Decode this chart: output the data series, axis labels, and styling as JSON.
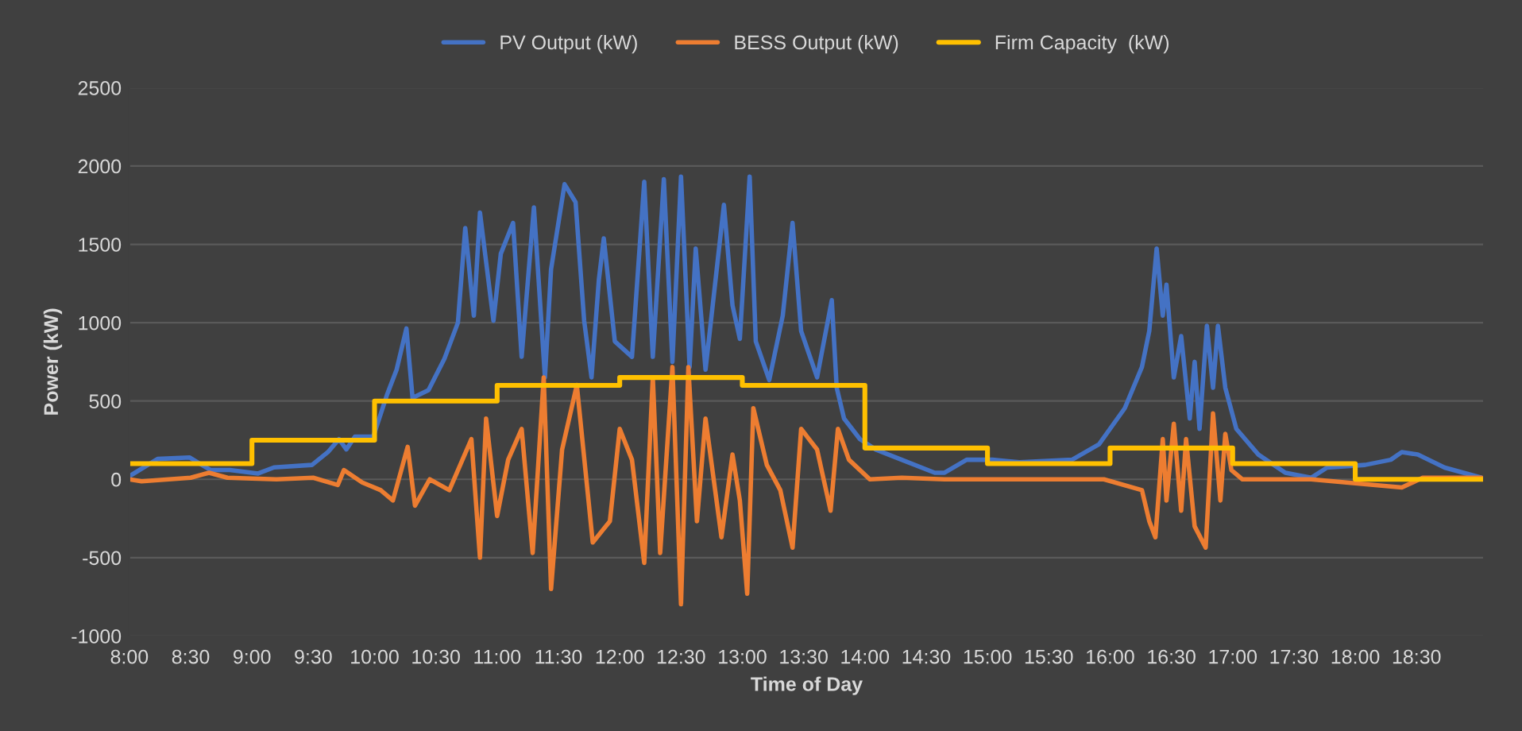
{
  "chart_data": {
    "type": "line",
    "xlabel": "Time of Day",
    "ylabel": "Power (kW)",
    "xlim": [
      8,
      19.05
    ],
    "ylim": [
      -1000,
      2500
    ],
    "xticks": [
      {
        "value": 8,
        "label": "8:00"
      },
      {
        "value": 8.5,
        "label": "8:30"
      },
      {
        "value": 9,
        "label": "9:00"
      },
      {
        "value": 9.5,
        "label": "9:30"
      },
      {
        "value": 10,
        "label": "10:00"
      },
      {
        "value": 10.5,
        "label": "10:30"
      },
      {
        "value": 11,
        "label": "11:00"
      },
      {
        "value": 11.5,
        "label": "11:30"
      },
      {
        "value": 12,
        "label": "12:00"
      },
      {
        "value": 12.5,
        "label": "12:30"
      },
      {
        "value": 13,
        "label": "13:00"
      },
      {
        "value": 13.5,
        "label": "13:30"
      },
      {
        "value": 14,
        "label": "14:00"
      },
      {
        "value": 14.5,
        "label": "14:30"
      },
      {
        "value": 15,
        "label": "15:00"
      },
      {
        "value": 15.5,
        "label": "15:30"
      },
      {
        "value": 16,
        "label": "16:00"
      },
      {
        "value": 16.5,
        "label": "16:30"
      },
      {
        "value": 17,
        "label": "17:00"
      },
      {
        "value": 17.5,
        "label": "17:30"
      },
      {
        "value": 18,
        "label": "18:00"
      },
      {
        "value": 18.5,
        "label": "18:30"
      }
    ],
    "yticks": [
      -1000,
      -500,
      0,
      500,
      1000,
      1500,
      2000,
      2500
    ],
    "grid": "y",
    "legend": "top",
    "marker": "none",
    "line_style": "solid",
    "series": [
      {
        "name": "PV Output (kW)",
        "color": "#4472c4",
        "x": [
          8.0,
          8.23,
          8.49,
          8.66,
          8.82,
          9.05,
          9.18,
          9.49,
          9.62,
          9.71,
          9.77,
          9.84,
          9.99,
          10.1,
          10.18,
          10.26,
          10.31,
          10.44,
          10.57,
          10.68,
          10.74,
          10.81,
          10.86,
          10.97,
          11.03,
          11.13,
          11.2,
          11.3,
          11.39,
          11.44,
          11.55,
          11.64,
          11.71,
          11.77,
          11.83,
          11.87,
          11.96,
          12.1,
          12.2,
          12.27,
          12.36,
          12.43,
          12.5,
          12.57,
          12.62,
          12.7,
          12.85,
          12.92,
          12.98,
          13.06,
          13.11,
          13.22,
          13.33,
          13.41,
          13.48,
          13.61,
          13.73,
          13.77,
          13.83,
          13.96,
          14.09,
          14.3,
          14.57,
          14.65,
          14.83,
          15.04,
          15.26,
          15.69,
          15.91,
          16.12,
          16.26,
          16.32,
          16.38,
          16.43,
          16.46,
          16.52,
          16.58,
          16.65,
          16.69,
          16.73,
          16.79,
          16.84,
          16.88,
          16.94,
          17.03,
          17.21,
          17.43,
          17.64,
          17.77,
          18.08,
          18.29,
          18.38,
          18.51,
          18.73,
          19.03
        ],
        "values": [
          20,
          130,
          140,
          60,
          60,
          37,
          76,
          92,
          174,
          257,
          191,
          273,
          273,
          536,
          700,
          963,
          520,
          570,
          770,
          1000,
          1604,
          1045,
          1703,
          1012,
          1440,
          1637,
          782,
          1736,
          651,
          1341,
          1884,
          1769,
          1012,
          651,
          1275,
          1538,
          881,
          782,
          1900,
          782,
          1916,
          750,
          1933,
          717,
          1473,
          700,
          1752,
          1111,
          897,
          1933,
          881,
          634,
          1045,
          1637,
          947,
          651,
          1144,
          585,
          388,
          256,
          190,
          125,
          42,
          42,
          125,
          125,
          109,
          125,
          224,
          454,
          717,
          947,
          1473,
          1045,
          1243,
          651,
          914,
          388,
          750,
          322,
          980,
          585,
          980,
          585,
          322,
          158,
          42,
          10,
          75,
          92,
          125,
          174,
          158,
          75,
          10
        ]
      },
      {
        "name": "BESS Output (kW)",
        "color": "#ed7d31",
        "x": [
          8.0,
          8.1,
          8.5,
          8.65,
          8.8,
          9.2,
          9.5,
          9.7,
          9.75,
          9.9,
          10.05,
          10.15,
          10.27,
          10.33,
          10.45,
          10.61,
          10.79,
          10.86,
          10.91,
          11.0,
          11.09,
          11.2,
          11.29,
          11.38,
          11.44,
          11.53,
          11.65,
          11.78,
          11.92,
          12.0,
          12.1,
          12.2,
          12.27,
          12.33,
          12.43,
          12.5,
          12.56,
          12.63,
          12.7,
          12.83,
          12.92,
          12.98,
          13.04,
          13.09,
          13.2,
          13.31,
          13.41,
          13.48,
          13.61,
          13.72,
          13.78,
          13.87,
          14.04,
          14.3,
          14.65,
          15.04,
          15.95,
          16.26,
          16.32,
          16.37,
          16.43,
          16.46,
          16.52,
          16.58,
          16.62,
          16.69,
          16.78,
          16.84,
          16.9,
          16.94,
          16.99,
          17.08,
          17.64,
          18.38,
          18.55,
          19.03
        ],
        "values": [
          0,
          -13,
          10,
          42,
          10,
          0,
          10,
          -36,
          59,
          -20,
          -69,
          -135,
          207,
          -168,
          0,
          -69,
          257,
          -500,
          388,
          -234,
          125,
          322,
          -470,
          651,
          -700,
          190,
          602,
          -403,
          -267,
          322,
          125,
          -534,
          651,
          -470,
          717,
          -797,
          717,
          -267,
          388,
          -370,
          158,
          -135,
          -730,
          454,
          92,
          -69,
          -436,
          322,
          190,
          -200,
          322,
          125,
          0,
          10,
          0,
          0,
          0,
          -69,
          -267,
          -370,
          257,
          -135,
          355,
          -200,
          257,
          -300,
          -436,
          421,
          -135,
          290,
          59,
          0,
          0,
          -52,
          10,
          10
        ]
      },
      {
        "name": "Firm Capacity  (kW)",
        "color": "#ffc000",
        "type": "step",
        "x": [
          8,
          9,
          10,
          11,
          12,
          13,
          14,
          15,
          16,
          17,
          18,
          19.05
        ],
        "values": [
          100,
          250,
          500,
          600,
          650,
          600,
          200,
          100,
          200,
          100,
          0,
          0
        ]
      }
    ]
  }
}
